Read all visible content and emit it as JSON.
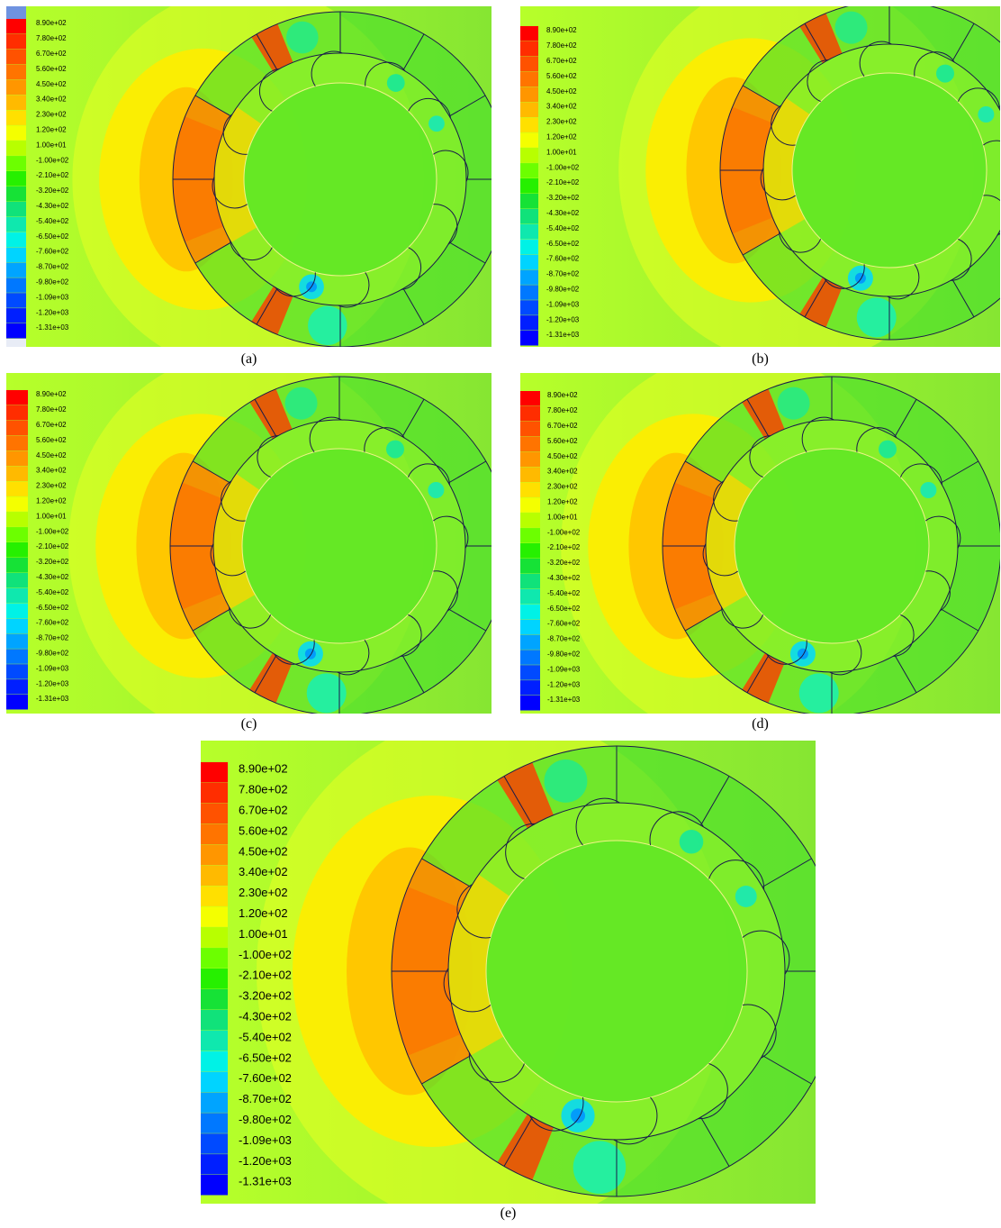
{
  "figure": {
    "panels": [
      {
        "id": "a",
        "caption": "(a)",
        "legend_top_cap": true
      },
      {
        "id": "b",
        "caption": "(b)",
        "legend_top_cap": false
      },
      {
        "id": "c",
        "caption": "(c)",
        "legend_top_cap": false
      },
      {
        "id": "d",
        "caption": "(d)",
        "legend_top_cap": false
      },
      {
        "id": "e",
        "caption": "(e)",
        "legend_top_cap": false
      }
    ],
    "legend": {
      "labels": [
        "8.90e+02",
        "7.80e+02",
        "6.70e+02",
        "5.60e+02",
        "4.50e+02",
        "3.40e+02",
        "2.30e+02",
        "1.20e+02",
        "1.00e+01",
        "-1.00e+02",
        "-2.10e+02",
        "-3.20e+02",
        "-4.30e+02",
        "-5.40e+02",
        "-6.50e+02",
        "-7.60e+02",
        "-8.70e+02",
        "-9.80e+02",
        "-1.09e+03",
        "-1.20e+03",
        "-1.31e+03"
      ],
      "colors": [
        "#ff0000",
        "#ff2d00",
        "#ff5200",
        "#ff7400",
        "#ff9600",
        "#ffba00",
        "#ffe000",
        "#f4ff00",
        "#b8ff00",
        "#6cff00",
        "#26f000",
        "#16e236",
        "#10e27a",
        "#0fe8ae",
        "#00f2e6",
        "#00d4ff",
        "#00a4ff",
        "#0078ff",
        "#004aff",
        "#001fff",
        "#0000ff"
      ]
    }
  }
}
